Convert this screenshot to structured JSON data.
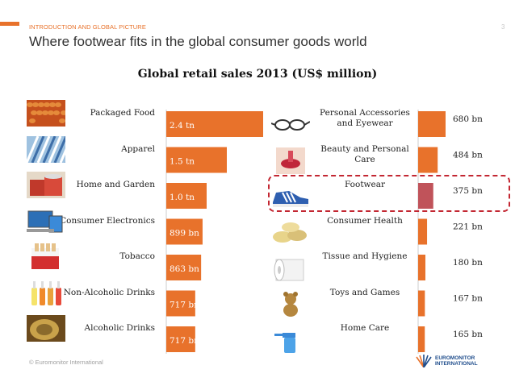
{
  "header": {
    "section": "INTRODUCTION AND GLOBAL PICTURE",
    "page_number": "3",
    "title": "Where footwear fits in the global consumer goods world"
  },
  "footer": {
    "copyright": "© Euromonitor International",
    "logo_line1": "EUROMONITOR",
    "logo_line2": "INTERNATIONAL"
  },
  "colors": {
    "bar": "#e8722b",
    "highlight_bar": "#c0535a",
    "highlight_border": "#c32732",
    "accent": "#e8722b"
  },
  "chart_data": [
    {
      "type": "bar",
      "orientation": "horizontal",
      "title": "Global retail sales  2013 (US$ million)",
      "unit": "US$ bn",
      "categories": [
        "Packaged Food",
        "Apparel",
        "Home and Garden",
        "Consumer Electronics",
        "Tobacco",
        "Non-Alcoholic Drinks",
        "Alcoholic Drinks"
      ],
      "values": [
        2400,
        1500,
        1000,
        899,
        863,
        717,
        717
      ],
      "labels": [
        "2.4 tn",
        "1.5 tn",
        "1.0 tn",
        "899 bn",
        "863 bn",
        "717 bn",
        "717 bn"
      ],
      "icons": [
        "baked-beans-icon",
        "fabric-icon",
        "paint-cans-icon",
        "electronics-icon",
        "cigarettes-icon",
        "bottles-icon",
        "beer-cans-icon"
      ],
      "xlim": [
        0,
        2400
      ]
    },
    {
      "type": "bar",
      "orientation": "horizontal",
      "categories": [
        "Personal Accessories and Eyewear",
        "Beauty and Personal Care",
        "Footwear",
        "Consumer Health",
        "Tissue and Hygiene",
        "Toys and Games",
        "Home Care"
      ],
      "values": [
        680,
        484,
        375,
        221,
        180,
        167,
        165
      ],
      "labels": [
        "680 bn",
        "484 bn",
        "375 bn",
        "221 bn",
        "180 bn",
        "167 bn",
        "165 bn"
      ],
      "icons": [
        "glasses-icon",
        "lips-icon",
        "sneaker-icon",
        "pills-icon",
        "toilet-roll-icon",
        "teddy-bear-icon",
        "spray-bottle-icon"
      ],
      "highlight": "Footwear",
      "xlim": [
        0,
        2400
      ]
    }
  ]
}
